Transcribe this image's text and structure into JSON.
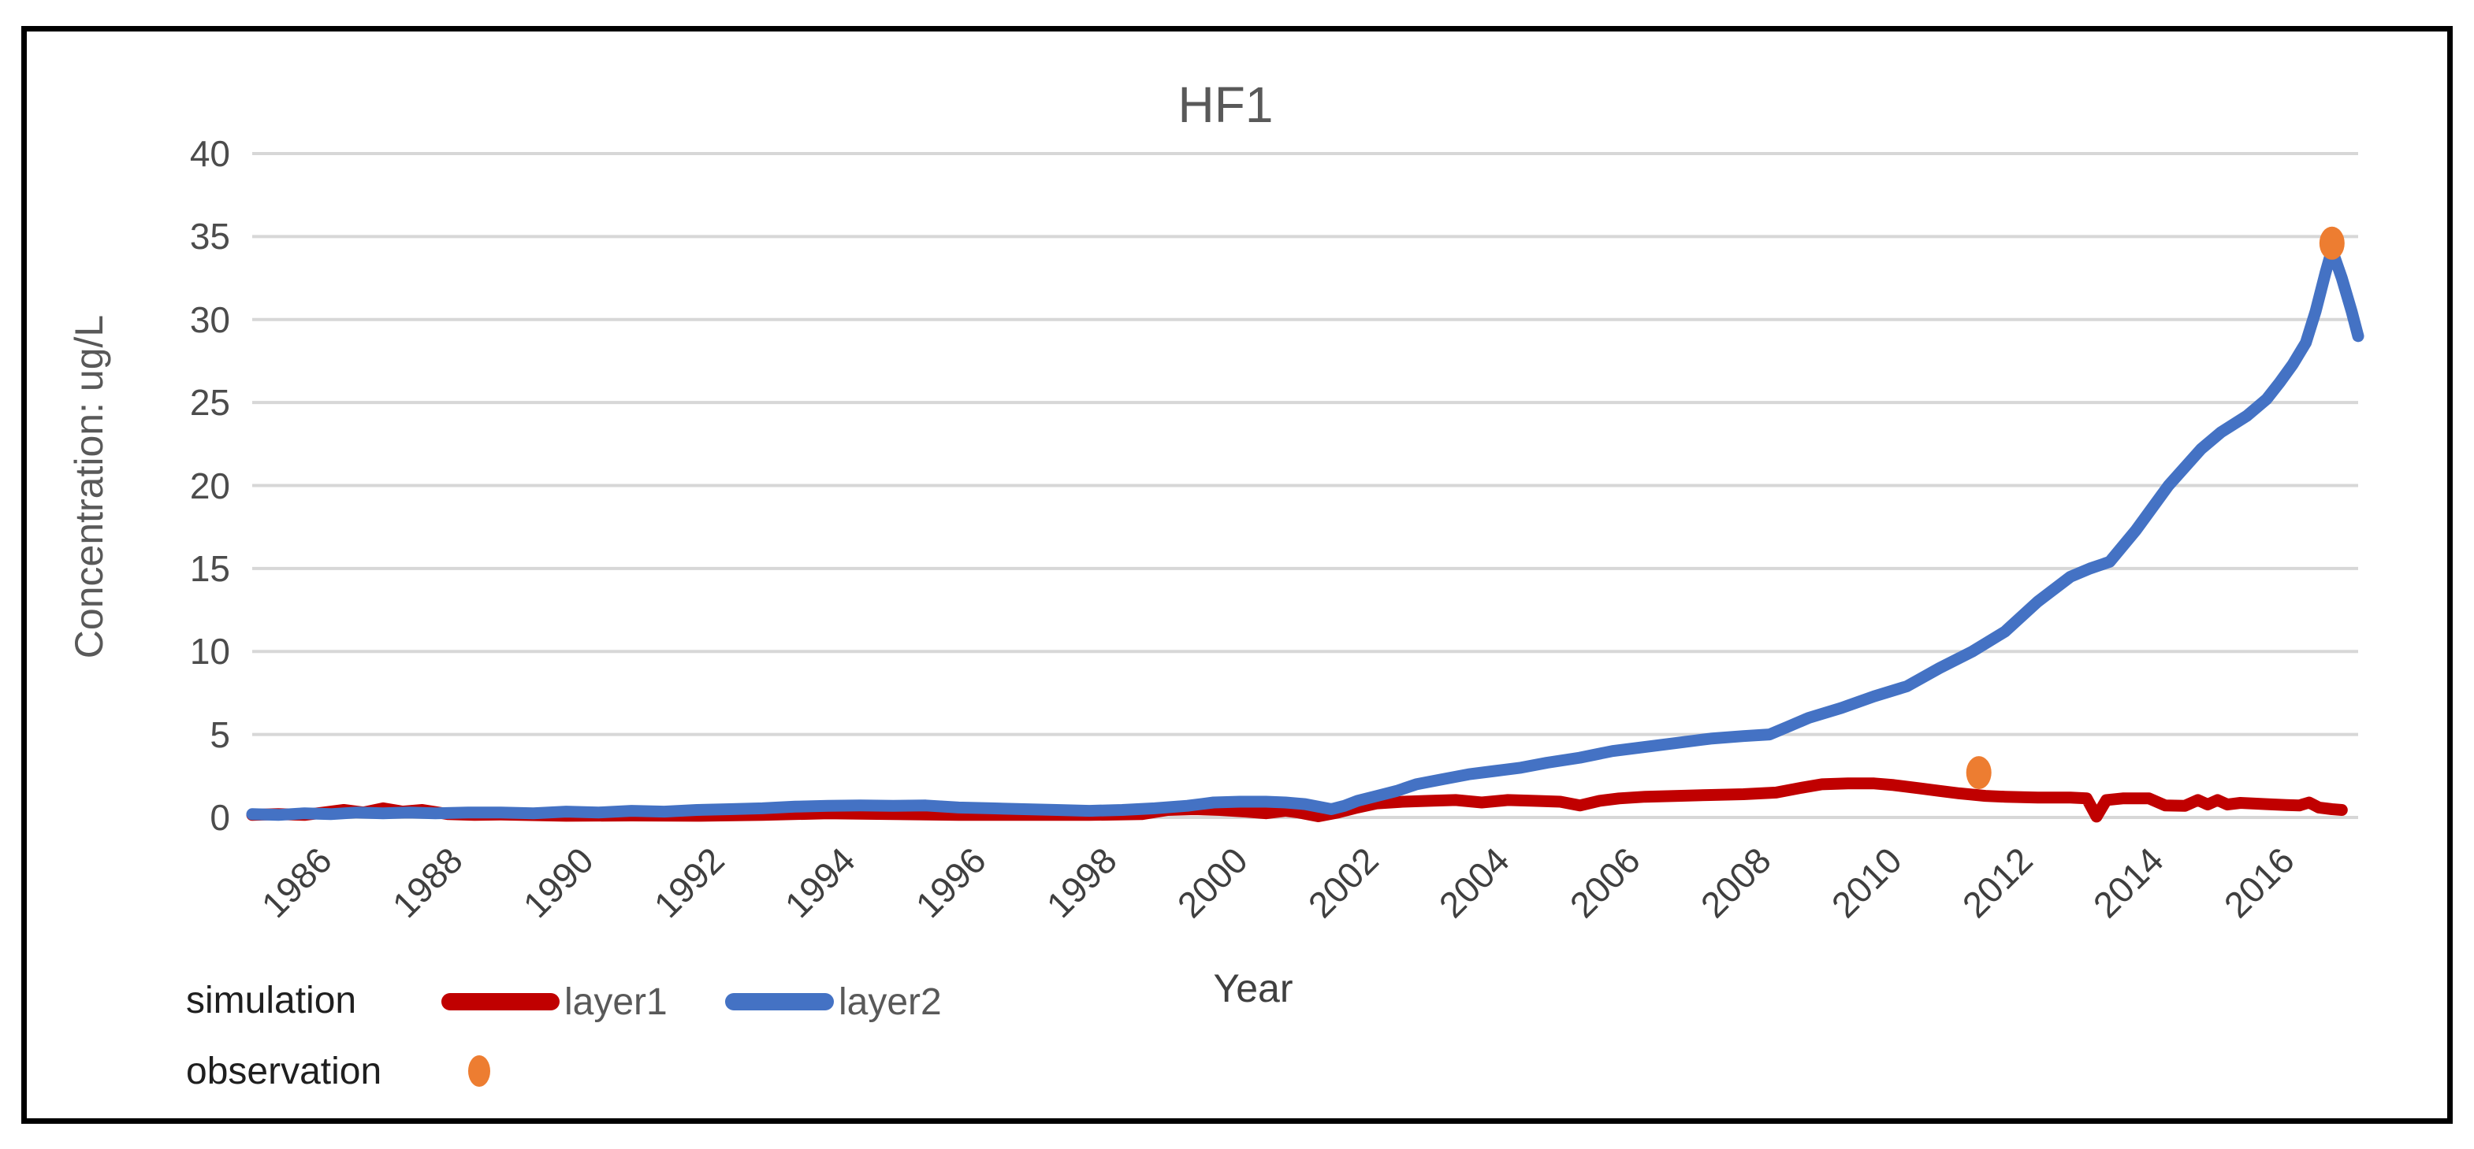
{
  "chart_data": {
    "type": "line",
    "title": "HF1",
    "xlabel": "Year",
    "ylabel": "Concentration: ug/L",
    "x_range": [
      1985.2,
      2017.4
    ],
    "ylim": [
      0,
      40
    ],
    "y_ticks": [
      0,
      5,
      10,
      15,
      20,
      25,
      30,
      35,
      40
    ],
    "x_ticks": [
      1986,
      1988,
      1990,
      1992,
      1994,
      1996,
      1998,
      2000,
      2002,
      2004,
      2006,
      2008,
      2010,
      2012,
      2014,
      2016
    ],
    "grid": "horizontal",
    "grid_color": "#d7d7d7",
    "legend": {
      "position": "bottom-left",
      "simulation_label": "simulation",
      "observation_label": "observation"
    },
    "series": [
      {
        "name": "layer1",
        "group": "simulation",
        "kind": "line",
        "color": "#c00000",
        "points": [
          [
            1985.2,
            0.15
          ],
          [
            1985.6,
            0.2
          ],
          [
            1986,
            0.15
          ],
          [
            1986.3,
            0.3
          ],
          [
            1986.6,
            0.45
          ],
          [
            1986.9,
            0.3
          ],
          [
            1987.2,
            0.55
          ],
          [
            1987.5,
            0.35
          ],
          [
            1987.8,
            0.45
          ],
          [
            1988.2,
            0.2
          ],
          [
            1988.6,
            0.15
          ],
          [
            1989,
            0.18
          ],
          [
            1990,
            0.1
          ],
          [
            1991,
            0.12
          ],
          [
            1992,
            0.1
          ],
          [
            1993,
            0.15
          ],
          [
            1994,
            0.25
          ],
          [
            1995,
            0.2
          ],
          [
            1996,
            0.15
          ],
          [
            1997,
            0.15
          ],
          [
            1998,
            0.15
          ],
          [
            1998.8,
            0.2
          ],
          [
            1999.2,
            0.45
          ],
          [
            1999.6,
            0.5
          ],
          [
            2000,
            0.45
          ],
          [
            2000.4,
            0.35
          ],
          [
            2000.7,
            0.25
          ],
          [
            2001,
            0.4
          ],
          [
            2001.2,
            0.3
          ],
          [
            2001.5,
            0.07
          ],
          [
            2001.8,
            0.3
          ],
          [
            2002.1,
            0.6
          ],
          [
            2002.4,
            0.85
          ],
          [
            2002.8,
            0.95
          ],
          [
            2003.2,
            1.0
          ],
          [
            2003.6,
            1.05
          ],
          [
            2004,
            0.9
          ],
          [
            2004.4,
            1.05
          ],
          [
            2004.8,
            1.0
          ],
          [
            2005.2,
            0.95
          ],
          [
            2005.5,
            0.72
          ],
          [
            2005.8,
            1.0
          ],
          [
            2006.1,
            1.15
          ],
          [
            2006.5,
            1.25
          ],
          [
            2007,
            1.3
          ],
          [
            2007.5,
            1.35
          ],
          [
            2008,
            1.4
          ],
          [
            2008.5,
            1.5
          ],
          [
            2008.9,
            1.8
          ],
          [
            2009.2,
            2.0
          ],
          [
            2009.6,
            2.05
          ],
          [
            2010,
            2.05
          ],
          [
            2010.3,
            1.95
          ],
          [
            2010.7,
            1.75
          ],
          [
            2011,
            1.6
          ],
          [
            2011.3,
            1.45
          ],
          [
            2011.7,
            1.3
          ],
          [
            2012,
            1.25
          ],
          [
            2012.5,
            1.2
          ],
          [
            2013,
            1.2
          ],
          [
            2013.25,
            1.15
          ],
          [
            2013.4,
            0.05
          ],
          [
            2013.55,
            1.05
          ],
          [
            2013.8,
            1.15
          ],
          [
            2014.2,
            1.15
          ],
          [
            2014.45,
            0.72
          ],
          [
            2014.75,
            0.7
          ],
          [
            2014.95,
            1.05
          ],
          [
            2015.1,
            0.78
          ],
          [
            2015.25,
            1.05
          ],
          [
            2015.4,
            0.78
          ],
          [
            2015.6,
            0.88
          ],
          [
            2016,
            0.8
          ],
          [
            2016.3,
            0.75
          ],
          [
            2016.5,
            0.72
          ],
          [
            2016.65,
            0.9
          ],
          [
            2016.8,
            0.6
          ],
          [
            2017,
            0.5
          ],
          [
            2017.15,
            0.45
          ]
        ]
      },
      {
        "name": "layer2",
        "group": "simulation",
        "kind": "line",
        "color": "#4472c4",
        "points": [
          [
            1985.2,
            0.2
          ],
          [
            1985.6,
            0.15
          ],
          [
            1986,
            0.25
          ],
          [
            1986.4,
            0.2
          ],
          [
            1986.8,
            0.3
          ],
          [
            1987.2,
            0.25
          ],
          [
            1987.6,
            0.3
          ],
          [
            1988,
            0.25
          ],
          [
            1988.5,
            0.3
          ],
          [
            1989,
            0.3
          ],
          [
            1989.5,
            0.25
          ],
          [
            1990,
            0.35
          ],
          [
            1990.5,
            0.3
          ],
          [
            1991,
            0.4
          ],
          [
            1991.5,
            0.35
          ],
          [
            1992,
            0.45
          ],
          [
            1992.5,
            0.5
          ],
          [
            1993,
            0.55
          ],
          [
            1993.5,
            0.65
          ],
          [
            1994,
            0.7
          ],
          [
            1994.5,
            0.72
          ],
          [
            1995,
            0.7
          ],
          [
            1995.5,
            0.72
          ],
          [
            1996,
            0.6
          ],
          [
            1996.5,
            0.55
          ],
          [
            1997,
            0.5
          ],
          [
            1997.5,
            0.45
          ],
          [
            1998,
            0.4
          ],
          [
            1998.5,
            0.45
          ],
          [
            1999,
            0.55
          ],
          [
            1999.5,
            0.7
          ],
          [
            1999.9,
            0.9
          ],
          [
            2000.3,
            0.95
          ],
          [
            2000.7,
            0.95
          ],
          [
            2001,
            0.9
          ],
          [
            2001.3,
            0.8
          ],
          [
            2001.7,
            0.5
          ],
          [
            2001.9,
            0.7
          ],
          [
            2002.1,
            1.0
          ],
          [
            2002.4,
            1.3
          ],
          [
            2002.7,
            1.6
          ],
          [
            2003,
            2.0
          ],
          [
            2003.4,
            2.3
          ],
          [
            2003.8,
            2.6
          ],
          [
            2004.2,
            2.8
          ],
          [
            2004.6,
            3.0
          ],
          [
            2005,
            3.3
          ],
          [
            2005.5,
            3.6
          ],
          [
            2006,
            4.0
          ],
          [
            2006.5,
            4.25
          ],
          [
            2007,
            4.5
          ],
          [
            2007.5,
            4.75
          ],
          [
            2008,
            4.9
          ],
          [
            2008.4,
            5.0
          ],
          [
            2008.7,
            5.5
          ],
          [
            2009,
            6.0
          ],
          [
            2009.5,
            6.6
          ],
          [
            2010,
            7.3
          ],
          [
            2010.5,
            7.9
          ],
          [
            2011,
            9.0
          ],
          [
            2011.5,
            10.0
          ],
          [
            2012,
            11.2
          ],
          [
            2012.5,
            13.0
          ],
          [
            2013,
            14.5
          ],
          [
            2013.3,
            15.0
          ],
          [
            2013.6,
            15.4
          ],
          [
            2014,
            17.3
          ],
          [
            2014.5,
            20.0
          ],
          [
            2015,
            22.2
          ],
          [
            2015.3,
            23.2
          ],
          [
            2015.7,
            24.2
          ],
          [
            2016,
            25.2
          ],
          [
            2016.2,
            26.2
          ],
          [
            2016.4,
            27.3
          ],
          [
            2016.6,
            28.6
          ],
          [
            2016.75,
            30.5
          ],
          [
            2016.9,
            32.8
          ],
          [
            2017.0,
            34.2
          ],
          [
            2017.15,
            32.5
          ],
          [
            2017.3,
            30.5
          ],
          [
            2017.4,
            29.0
          ]
        ]
      },
      {
        "name": "observation",
        "group": "observation",
        "kind": "scatter",
        "color": "#ed7d31",
        "points": [
          [
            2011.6,
            2.7
          ],
          [
            2017.0,
            34.6
          ]
        ]
      }
    ]
  }
}
